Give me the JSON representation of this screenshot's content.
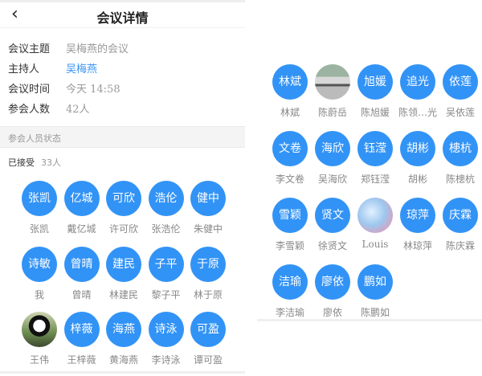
{
  "header": {
    "title": "会议详情",
    "back_icon": "chevron-left-icon"
  },
  "details": [
    {
      "label": "会议主题",
      "value": "吴梅燕的会议"
    },
    {
      "label": "主持人",
      "value": "吴梅燕"
    },
    {
      "label": "会议时间",
      "value": "今天 14:58"
    },
    {
      "label": "参会人数",
      "value": "42人"
    }
  ],
  "section_title": "参会人员状态",
  "accepted": {
    "label": "已接受",
    "count": "33人"
  },
  "colors": {
    "accent": "#3293f6",
    "link": "#3b95f2"
  },
  "left_people": [
    {
      "avatar": "张凯",
      "name": "张凯"
    },
    {
      "avatar": "亿城",
      "name": "戴亿城"
    },
    {
      "avatar": "可欣",
      "name": "许可欣"
    },
    {
      "avatar": "浩伦",
      "name": "张浩伦"
    },
    {
      "avatar": "健中",
      "name": "朱健中"
    },
    {
      "avatar": "诗敏",
      "name": "我"
    },
    {
      "avatar": "曾晴",
      "name": "曾晴"
    },
    {
      "avatar": "建民",
      "name": "林建民"
    },
    {
      "avatar": "子平",
      "name": "黎子平"
    },
    {
      "avatar": "于原",
      "name": "林于原"
    },
    {
      "avatar": "",
      "photo": "panda",
      "name": "王伟"
    },
    {
      "avatar": "梓薇",
      "name": "王梓薇"
    },
    {
      "avatar": "海燕",
      "name": "黄海燕"
    },
    {
      "avatar": "诗泳",
      "name": "李诗泳"
    },
    {
      "avatar": "可盈",
      "name": "谭可盈"
    }
  ],
  "right_people": [
    {
      "avatar": "林斌",
      "name": "林斌"
    },
    {
      "avatar": "",
      "photo": "car",
      "name": "陈蔚岳"
    },
    {
      "avatar": "旭媛",
      "name": "陈旭媛"
    },
    {
      "avatar": "追光",
      "name": "陈领…光"
    },
    {
      "avatar": "依莲",
      "name": "吴依莲"
    },
    {
      "avatar": "文卷",
      "name": "李文卷"
    },
    {
      "avatar": "海欣",
      "name": "吴海欣"
    },
    {
      "avatar": "钰滢",
      "name": "郑钰滢"
    },
    {
      "avatar": "胡彬",
      "name": "胡彬"
    },
    {
      "avatar": "槵杭",
      "name": "陈槵杭"
    },
    {
      "avatar": "雪颖",
      "name": "李雪颖"
    },
    {
      "avatar": "贤文",
      "name": "徐贤文"
    },
    {
      "avatar": "",
      "photo": "art",
      "name": "Louis"
    },
    {
      "avatar": "琼萍",
      "name": "林琼萍"
    },
    {
      "avatar": "庆霖",
      "name": "陈庆霖"
    },
    {
      "avatar": "洁瑜",
      "name": "李洁瑜"
    },
    {
      "avatar": "廖依",
      "name": "廖依"
    },
    {
      "avatar": "鹏如",
      "name": "陈鹏如"
    }
  ]
}
